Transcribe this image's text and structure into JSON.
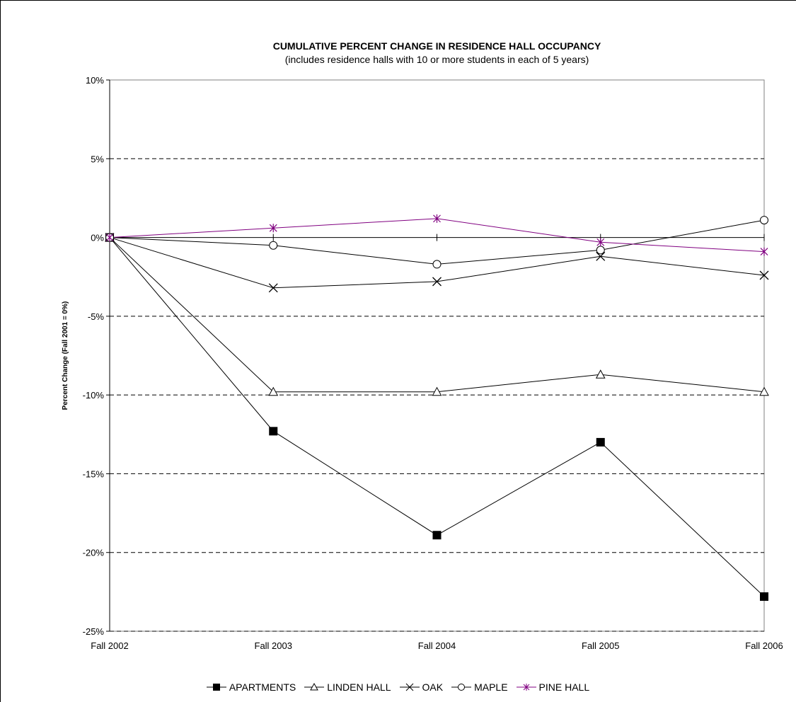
{
  "chart_data": {
    "type": "line",
    "title": "CUMULATIVE PERCENT CHANGE IN RESIDENCE HALL OCCUPANCY",
    "subtitle": "(includes residence halls with 10 or more students in each of 5 years)",
    "xlabel": "",
    "ylabel": "Percent Change (Fall 2001 = 0%)",
    "categories": [
      "Fall 2002",
      "Fall 2003",
      "Fall 2004",
      "Fall 2005",
      "Fall 2006"
    ],
    "ylim": [
      -25,
      10
    ],
    "yticks": [
      10,
      5,
      0,
      -5,
      -10,
      -15,
      -20,
      -25
    ],
    "ytick_labels": [
      "10%",
      "5%",
      "0%",
      "-5%",
      "-10%",
      "-15%",
      "-20%",
      "-25%"
    ],
    "grid": "horizontal dashed",
    "legend_position": "bottom",
    "series": [
      {
        "name": "APARTMENTS",
        "values": [
          0,
          -12.3,
          -18.9,
          -13.0,
          -22.8
        ],
        "color": "#000000",
        "marker": "filled-square"
      },
      {
        "name": "LINDEN HALL",
        "values": [
          0,
          -9.8,
          -9.8,
          -8.7,
          -9.8
        ],
        "color": "#000000",
        "marker": "open-triangle"
      },
      {
        "name": "OAK",
        "values": [
          0,
          -3.2,
          -2.8,
          -1.2,
          -2.4
        ],
        "color": "#000000",
        "marker": "x"
      },
      {
        "name": "MAPLE",
        "values": [
          0,
          -0.5,
          -1.7,
          -0.8,
          1.1
        ],
        "color": "#000000",
        "marker": "open-circle"
      },
      {
        "name": "PINE HALL",
        "values": [
          0,
          0.6,
          1.2,
          -0.3,
          -0.9
        ],
        "color": "#800080",
        "marker": "star"
      }
    ]
  }
}
